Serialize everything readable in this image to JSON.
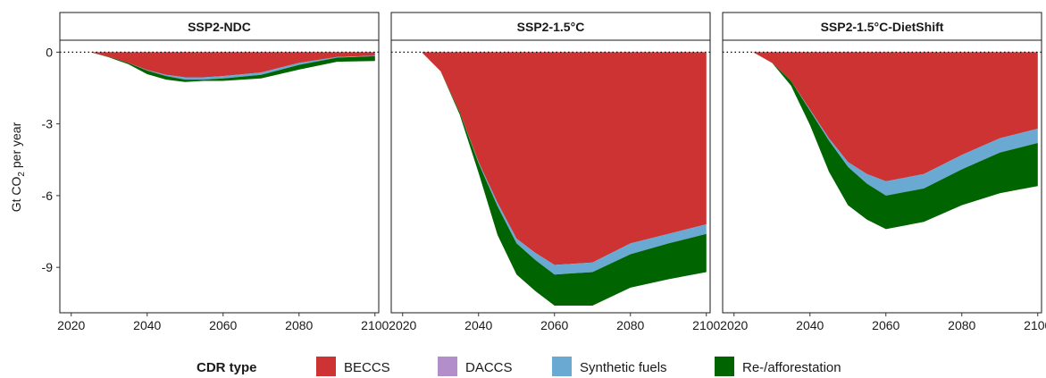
{
  "chart_data": {
    "type": "area",
    "ylabel": "Gt CO₂ per year",
    "ylabel_main": "Gt CO",
    "ylabel_sub": "2",
    "ylabel_rest": " per year",
    "ylim": [
      -10.9,
      0.5
    ],
    "xlim": [
      2017,
      2101
    ],
    "yticks": [
      0,
      -3,
      -6,
      -9
    ],
    "ytick_labels": [
      "0",
      "-3",
      "-6",
      "-9"
    ],
    "xticks": [
      2020,
      2040,
      2060,
      2080,
      2100
    ],
    "xtick_labels": [
      "2020",
      "2040",
      "2060",
      "2080",
      "2100"
    ],
    "reference_line": 0,
    "legend_title": "CDR type",
    "legend_position": "bottom",
    "colors": {
      "BECCS": "#cd3333",
      "DACCS": "#b28fcb",
      "Synthetic fuels": "#6aa9d2",
      "Re-/afforestation": "#006400"
    },
    "categories": [
      "BECCS",
      "DACCS",
      "Synthetic fuels",
      "Re-/afforestation"
    ],
    "panels": [
      {
        "title": "SSP2-NDC",
        "x": [
          2020,
          2025,
          2030,
          2035,
          2040,
          2045,
          2050,
          2055,
          2060,
          2070,
          2080,
          2090,
          2100
        ],
        "series": [
          {
            "name": "BECCS",
            "values": [
              0,
              0,
              -0.2,
              -0.45,
              -0.75,
              -0.95,
              -1.05,
              -1.05,
              -1.0,
              -0.85,
              -0.45,
              -0.2,
              -0.15
            ]
          },
          {
            "name": "DACCS",
            "values": [
              0,
              0,
              0,
              0,
              0,
              0,
              0,
              0,
              0,
              0,
              0,
              0,
              0
            ]
          },
          {
            "name": "Synthetic fuels",
            "values": [
              0,
              0,
              0,
              0,
              -0.02,
              -0.05,
              -0.1,
              -0.1,
              -0.1,
              -0.1,
              -0.08,
              -0.03,
              -0.02
            ]
          },
          {
            "name": "Re-/afforestation",
            "values": [
              0,
              0,
              -0.02,
              -0.05,
              -0.15,
              -0.15,
              -0.1,
              -0.05,
              -0.1,
              -0.15,
              -0.2,
              -0.17,
              -0.2
            ]
          }
        ]
      },
      {
        "title": "SSP2-1.5°C",
        "x": [
          2020,
          2025,
          2030,
          2035,
          2040,
          2045,
          2050,
          2055,
          2060,
          2070,
          2080,
          2090,
          2100
        ],
        "series": [
          {
            "name": "BECCS",
            "values": [
              0,
              0,
              -0.8,
              -2.5,
              -4.6,
              -6.3,
              -7.8,
              -8.4,
              -8.9,
              -8.8,
              -8.0,
              -7.6,
              -7.2
            ]
          },
          {
            "name": "DACCS",
            "values": [
              0,
              0,
              0,
              0,
              0,
              0,
              0,
              0,
              0,
              0,
              0,
              0,
              0
            ]
          },
          {
            "name": "Synthetic fuels",
            "values": [
              0,
              0,
              0,
              0,
              -0.05,
              -0.15,
              -0.2,
              -0.3,
              -0.4,
              -0.4,
              -0.45,
              -0.4,
              -0.4
            ]
          },
          {
            "name": "Re-/afforestation",
            "values": [
              0,
              0,
              0,
              -0.1,
              -0.4,
              -1.2,
              -1.3,
              -1.3,
              -1.3,
              -1.4,
              -1.4,
              -1.5,
              -1.6
            ]
          }
        ]
      },
      {
        "title": "SSP2-1.5°C-DietShift",
        "x": [
          2020,
          2025,
          2030,
          2035,
          2040,
          2045,
          2050,
          2055,
          2060,
          2070,
          2080,
          2090,
          2100
        ],
        "series": [
          {
            "name": "BECCS",
            "values": [
              0,
              0,
              -0.45,
              -1.2,
              -2.4,
              -3.6,
              -4.6,
              -5.1,
              -5.4,
              -5.1,
              -4.3,
              -3.6,
              -3.2
            ]
          },
          {
            "name": "DACCS",
            "values": [
              0,
              0,
              0,
              0,
              0,
              0,
              0,
              0,
              0,
              0,
              0,
              0,
              0
            ]
          },
          {
            "name": "Synthetic fuels",
            "values": [
              0,
              0,
              0,
              0,
              -0.05,
              -0.1,
              -0.2,
              -0.4,
              -0.6,
              -0.6,
              -0.6,
              -0.6,
              -0.6
            ]
          },
          {
            "name": "Re-/afforestation",
            "values": [
              0,
              0,
              0,
              -0.2,
              -0.6,
              -1.3,
              -1.6,
              -1.5,
              -1.4,
              -1.4,
              -1.5,
              -1.7,
              -1.8
            ]
          }
        ]
      }
    ]
  }
}
